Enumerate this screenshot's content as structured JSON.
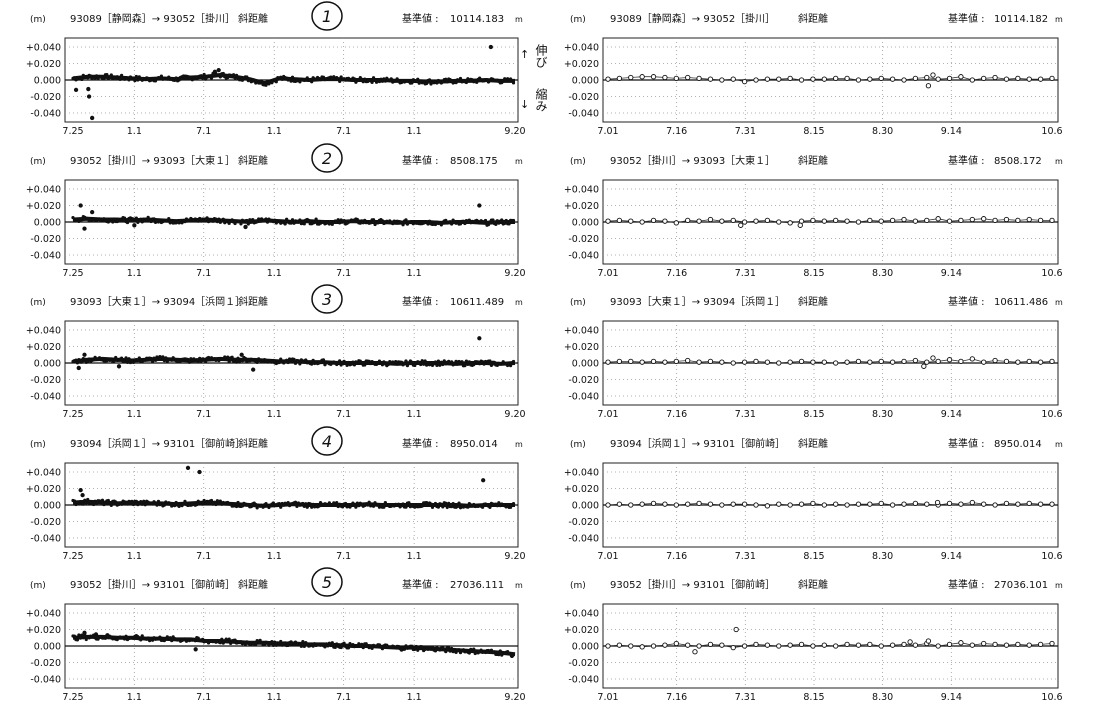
{
  "y_ticks": [
    "+0.040",
    "+0.020",
    "0.000",
    "-0.020",
    "-0.040"
  ],
  "y_tick_values": [
    0.04,
    0.02,
    0,
    -0.02,
    -0.04
  ],
  "unit_label": "(m)",
  "measure_label": "斜距離",
  "base_label": "基準値 :",
  "base_unit": "m",
  "annotation": {
    "up_arrow": "↑",
    "extend": "伸び",
    "down_arrow": "↓",
    "shrink": "縮み"
  },
  "chart_data": [
    {
      "type": "scatter",
      "panel": "left",
      "number": "1",
      "route": "93089［静岡森］→ 93052［掛川］",
      "base_value": "10114.183",
      "x_ticks": [
        "7.25",
        "1.1",
        "7.1",
        "1.1",
        "7.1",
        "1.1",
        "9.20"
      ],
      "x_tick_days": [
        0,
        160,
        341,
        525,
        706,
        890,
        1153
      ],
      "x_range_days": [
        0,
        1153
      ],
      "values": [
        0.002,
        0.004,
        0.004,
        0.003,
        0.002,
        0.001,
        0.002,
        0.001,
        0.003,
        0.004,
        0.006,
        0.004,
        0.001,
        -0.004,
        0.002,
        0.001,
        0.0,
        0.001,
        0.001,
        0.0,
        0.0,
        0.0,
        -0.001,
        -0.001,
        -0.002,
        -0.002,
        -0.001,
        -0.001,
        0.0,
        -0.001,
        -0.001
      ],
      "outliers": [
        [
          8,
          -0.012
        ],
        [
          40,
          -0.011
        ],
        [
          42,
          -0.02
        ],
        [
          50,
          -0.046
        ],
        [
          380,
          0.012
        ],
        [
          370,
          0.01
        ],
        [
          1090,
          0.04
        ]
      ]
    },
    {
      "type": "scatter",
      "panel": "right",
      "number": "",
      "route": "93089［静岡森］→ 93052［掛川］",
      "base_value": "10114.182",
      "x_ticks": [
        "7.01",
        "7.16",
        "7.31",
        "8.15",
        "8.30",
        "9.14",
        "10.6"
      ],
      "x_tick_days": [
        0,
        15,
        30,
        45,
        60,
        75,
        97
      ],
      "x_range_days": [
        0,
        97
      ],
      "values": [
        0.001,
        0.002,
        0.003,
        0.004,
        0.004,
        0.003,
        0.002,
        0.003,
        0.002,
        0.001,
        0.0,
        0.001,
        -0.002,
        0.0,
        0.001,
        0.001,
        0.002,
        0.0,
        0.001,
        0.001,
        0.002,
        0.002,
        0.0,
        0.001,
        0.002,
        0.001,
        0.0,
        0.002,
        0.003,
        0.001,
        0.002,
        0.004,
        0.0,
        0.002,
        0.003,
        0.001,
        0.002,
        0.001,
        0.001,
        0.002
      ],
      "outliers": [
        [
          70,
          -0.007
        ],
        [
          71,
          0.006
        ]
      ]
    },
    {
      "type": "scatter",
      "panel": "left",
      "number": "2",
      "route": "93052［掛川］→ 93093［大東１］",
      "base_value": "8508.175",
      "x_ticks": [
        "7.25",
        "1.1",
        "7.1",
        "1.1",
        "7.1",
        "1.1",
        "9.20"
      ],
      "x_tick_days": [
        0,
        160,
        341,
        525,
        706,
        890,
        1153
      ],
      "x_range_days": [
        0,
        1153
      ],
      "values": [
        0.003,
        0.004,
        0.003,
        0.003,
        0.002,
        0.003,
        0.002,
        0.001,
        0.002,
        0.003,
        0.002,
        0.001,
        0.0,
        0.002,
        0.001,
        0.0,
        0.001,
        0.0,
        0.0,
        0.001,
        0.0,
        0.0,
        -0.001,
        0.0,
        0.0,
        -0.001,
        0.0,
        0.0,
        -0.001,
        0.0,
        0.0
      ],
      "outliers": [
        [
          20,
          0.02
        ],
        [
          30,
          -0.008
        ],
        [
          50,
          0.012
        ],
        [
          160,
          -0.004
        ],
        [
          450,
          -0.006
        ],
        [
          1060,
          0.02
        ]
      ]
    },
    {
      "type": "scatter",
      "panel": "right",
      "number": "",
      "route": "93052［掛川］→ 93093［大東１］",
      "base_value": "8508.172",
      "x_ticks": [
        "7.01",
        "7.16",
        "7.31",
        "8.15",
        "8.30",
        "9.14",
        "10.6"
      ],
      "x_tick_days": [
        0,
        15,
        30,
        45,
        60,
        75,
        97
      ],
      "x_range_days": [
        0,
        97
      ],
      "values": [
        0.001,
        0.002,
        0.001,
        0.0,
        0.002,
        0.001,
        -0.001,
        0.002,
        0.001,
        0.003,
        0.001,
        0.002,
        0.0,
        0.001,
        0.002,
        0.0,
        -0.001,
        0.001,
        0.002,
        0.001,
        0.002,
        0.001,
        0.0,
        0.002,
        0.001,
        0.002,
        0.003,
        0.001,
        0.002,
        0.004,
        0.001,
        0.002,
        0.003,
        0.004,
        0.002,
        0.003,
        0.002,
        0.003,
        0.002,
        0.002
      ],
      "outliers": [
        [
          29,
          -0.004
        ],
        [
          42,
          -0.004
        ]
      ]
    },
    {
      "type": "scatter",
      "panel": "left",
      "number": "3",
      "route": "93093［大東１］→ 93094［浜岡１］",
      "base_value": "10611.489",
      "x_ticks": [
        "7.25",
        "1.1",
        "7.1",
        "1.1",
        "7.1",
        "1.1",
        "9.20"
      ],
      "x_tick_days": [
        0,
        160,
        341,
        525,
        706,
        890,
        1153
      ],
      "x_range_days": [
        0,
        1153
      ],
      "values": [
        0.002,
        0.004,
        0.005,
        0.004,
        0.003,
        0.004,
        0.005,
        0.004,
        0.003,
        0.004,
        0.005,
        0.004,
        0.004,
        0.003,
        0.002,
        0.002,
        0.001,
        0.001,
        0.0,
        0.0,
        0.0,
        0.0,
        -0.001,
        0.0,
        0.0,
        0.0,
        -0.001,
        0.0,
        0.0,
        -0.001,
        0.0
      ],
      "outliers": [
        [
          15,
          -0.006
        ],
        [
          30,
          0.01
        ],
        [
          120,
          -0.004
        ],
        [
          440,
          0.01
        ],
        [
          470,
          -0.008
        ],
        [
          1060,
          0.03
        ]
      ]
    },
    {
      "type": "scatter",
      "panel": "right",
      "number": "",
      "route": "93093［大東１］→ 93094［浜岡１］",
      "base_value": "10611.486",
      "x_ticks": [
        "7.01",
        "7.16",
        "7.31",
        "8.15",
        "8.30",
        "9.14",
        "10.6"
      ],
      "x_tick_days": [
        0,
        15,
        30,
        45,
        60,
        75,
        97
      ],
      "x_range_days": [
        0,
        97
      ],
      "values": [
        0.001,
        0.002,
        0.002,
        0.001,
        0.002,
        0.001,
        0.002,
        0.003,
        0.001,
        0.002,
        0.001,
        0.0,
        0.001,
        0.002,
        0.001,
        0.0,
        0.001,
        0.002,
        0.001,
        0.001,
        0.0,
        0.001,
        0.002,
        0.001,
        0.002,
        0.001,
        0.002,
        0.003,
        0.001,
        0.002,
        0.004,
        0.002,
        0.005,
        0.001,
        0.003,
        0.002,
        0.001,
        0.002,
        0.001,
        0.002
      ],
      "outliers": [
        [
          69,
          -0.004
        ],
        [
          71,
          0.006
        ]
      ]
    },
    {
      "type": "scatter",
      "panel": "left",
      "number": "4",
      "route": "93094［浜岡１］→ 93101［御前崎］",
      "base_value": "8950.014",
      "x_ticks": [
        "7.25",
        "1.1",
        "7.1",
        "1.1",
        "7.1",
        "1.1",
        "9.20"
      ],
      "x_tick_days": [
        0,
        160,
        341,
        525,
        706,
        890,
        1153
      ],
      "x_range_days": [
        0,
        1153
      ],
      "values": [
        0.003,
        0.004,
        0.003,
        0.002,
        0.003,
        0.002,
        0.002,
        0.001,
        0.002,
        0.003,
        0.002,
        0.001,
        0.0,
        -0.001,
        0.0,
        0.001,
        0.0,
        0.0,
        0.0,
        0.0,
        0.001,
        0.0,
        0.0,
        0.0,
        0.0,
        0.0,
        0.0,
        -0.001,
        0.0,
        0.0,
        0.0
      ],
      "outliers": [
        [
          20,
          0.018
        ],
        [
          25,
          0.012
        ],
        [
          300,
          0.045
        ],
        [
          330,
          0.04
        ],
        [
          1070,
          0.03
        ]
      ]
    },
    {
      "type": "scatter",
      "panel": "right",
      "number": "",
      "route": "93094［浜岡１］→ 93101［御前崎］",
      "base_value": "8950.014",
      "x_ticks": [
        "7.01",
        "7.16",
        "7.31",
        "8.15",
        "8.30",
        "9.14",
        "10.6"
      ],
      "x_tick_days": [
        0,
        15,
        30,
        45,
        60,
        75,
        97
      ],
      "x_range_days": [
        0,
        97
      ],
      "values": [
        0.0,
        0.001,
        0.0,
        0.001,
        0.002,
        0.001,
        0.0,
        0.001,
        0.002,
        0.001,
        0.0,
        0.001,
        0.001,
        0.0,
        -0.001,
        0.001,
        0.0,
        0.001,
        0.002,
        0.0,
        0.001,
        0.0,
        0.001,
        0.001,
        0.002,
        0.0,
        0.001,
        0.002,
        0.001,
        0.0,
        0.002,
        0.001,
        0.003,
        0.001,
        0.0,
        0.002,
        0.001,
        0.002,
        0.001,
        0.001
      ],
      "outliers": [
        [
          72,
          0.003
        ]
      ]
    },
    {
      "type": "scatter",
      "panel": "left",
      "number": "5",
      "route": "93052［掛川］→ 93101［御前崎］",
      "base_value": "27036.111",
      "x_ticks": [
        "7.25",
        "1.1",
        "7.1",
        "1.1",
        "7.1",
        "1.1",
        "9.20"
      ],
      "x_tick_days": [
        0,
        160,
        341,
        525,
        706,
        890,
        1153
      ],
      "x_range_days": [
        0,
        1153
      ],
      "values": [
        0.01,
        0.011,
        0.011,
        0.01,
        0.01,
        0.009,
        0.009,
        0.008,
        0.008,
        0.006,
        0.006,
        0.005,
        0.004,
        0.004,
        0.003,
        0.003,
        0.002,
        0.002,
        0.001,
        0.0,
        0.0,
        -0.001,
        -0.002,
        -0.002,
        -0.003,
        -0.004,
        -0.005,
        -0.006,
        -0.007,
        -0.008,
        -0.01
      ],
      "outliers": [
        [
          30,
          0.016
        ],
        [
          60,
          0.014
        ],
        [
          90,
          0.013
        ],
        [
          320,
          -0.004
        ],
        [
          1145,
          -0.012
        ]
      ]
    },
    {
      "type": "scatter",
      "panel": "right",
      "number": "",
      "route": "93052［掛川］→ 93101［御前崎］",
      "base_value": "27036.101",
      "x_ticks": [
        "7.01",
        "7.16",
        "7.31",
        "8.15",
        "8.30",
        "9.14",
        "10.6"
      ],
      "x_tick_days": [
        0,
        15,
        30,
        45,
        60,
        75,
        97
      ],
      "x_range_days": [
        0,
        97
      ],
      "values": [
        0.0,
        0.001,
        0.0,
        -0.001,
        0.0,
        0.001,
        0.003,
        0.001,
        0.0,
        0.002,
        0.001,
        -0.002,
        0.0,
        0.002,
        0.001,
        0.0,
        0.001,
        0.002,
        0.0,
        0.001,
        0.0,
        0.002,
        0.001,
        0.002,
        0.0,
        0.001,
        0.002,
        0.001,
        0.003,
        0.0,
        0.002,
        0.004,
        0.001,
        0.003,
        0.002,
        0.001,
        0.002,
        0.001,
        0.002,
        0.003
      ],
      "outliers": [
        [
          19,
          -0.007
        ],
        [
          28,
          0.02
        ],
        [
          70,
          0.006
        ],
        [
          66,
          0.005
        ]
      ]
    }
  ]
}
